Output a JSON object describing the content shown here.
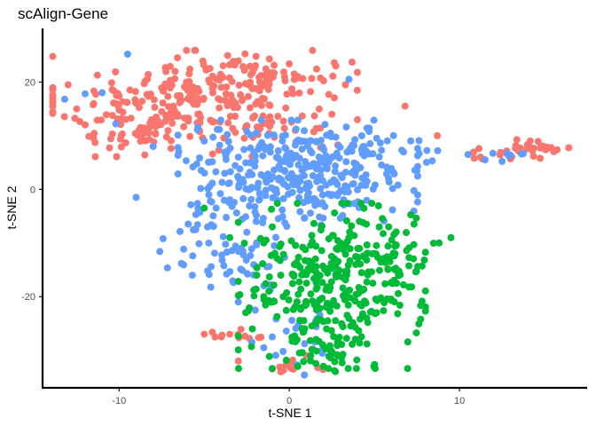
{
  "chart_data": {
    "type": "scatter",
    "title": "scAlign-Gene",
    "xlabel": "t-SNE 1",
    "ylabel": "t-SNE 2",
    "xlim": [
      -14.5,
      17.5
    ],
    "ylim": [
      -37,
      30
    ],
    "xticks": [
      -10,
      0,
      10
    ],
    "yticks": [
      -20,
      0,
      20
    ],
    "grid": false,
    "legend": "none",
    "series": [
      {
        "color": "#F8766D",
        "clusters": [
          {
            "center": [
              -5.5,
              16
            ],
            "spread": [
              4.0,
              4.5
            ],
            "n": 260
          },
          {
            "center": [
              -1.5,
              21
            ],
            "spread": [
              2.5,
              2.5
            ],
            "n": 60
          },
          {
            "center": [
              -9,
              11
            ],
            "spread": [
              1.5,
              2.0
            ],
            "n": 25
          },
          {
            "center": [
              14,
              7.5
            ],
            "spread": [
              1.3,
              0.8
            ],
            "n": 30
          },
          {
            "center": [
              12,
              6.5
            ],
            "spread": [
              0.8,
              0.5
            ],
            "n": 8
          },
          {
            "center": [
              -3,
              -27
            ],
            "spread": [
              1.3,
              0.8
            ],
            "n": 10
          },
          {
            "center": [
              1,
              -33
            ],
            "spread": [
              1.0,
              0.6
            ],
            "n": 10
          }
        ],
        "points": [
          [
            -13,
            19.5
          ],
          [
            -12.5,
            15
          ],
          [
            -12,
            12
          ],
          [
            -11.5,
            9.5
          ],
          [
            6.8,
            15.5
          ],
          [
            8.7,
            10
          ],
          [
            4,
            13
          ],
          [
            2.5,
            14
          ],
          [
            -4,
            19
          ],
          [
            1,
            -31
          ],
          [
            -3,
            -32
          ],
          [
            -0.5,
            -34
          ],
          [
            -1,
            -33.5
          ],
          [
            -5,
            -27
          ],
          [
            -4,
            -27.5
          ],
          [
            -3.5,
            -27
          ]
        ]
      },
      {
        "color": "#619CFF",
        "clusters": [
          {
            "center": [
              0.5,
              3
            ],
            "spread": [
              3.2,
              4.5
            ],
            "n": 330
          },
          {
            "center": [
              -3.5,
              -10
            ],
            "spread": [
              2.0,
              4.5
            ],
            "n": 70
          },
          {
            "center": [
              5,
              7
            ],
            "spread": [
              2.0,
              2.0
            ],
            "n": 40
          },
          {
            "center": [
              1,
              -28
            ],
            "spread": [
              1.2,
              3.0
            ],
            "n": 18
          },
          {
            "center": [
              13,
              6.5
            ],
            "spread": [
              0.8,
              0.6
            ],
            "n": 6
          }
        ],
        "points": [
          [
            -13.2,
            16.8
          ],
          [
            -12,
            17.8
          ],
          [
            -9,
            -1.5
          ],
          [
            -4.8,
            -15.2
          ],
          [
            -2.2,
            -28.5
          ],
          [
            -1.5,
            -29.5
          ],
          [
            -1,
            -27.5
          ],
          [
            -3,
            6
          ],
          [
            -5,
            9
          ],
          [
            -6.5,
            7
          ],
          [
            -8,
            8
          ],
          [
            -11,
            18
          ],
          [
            -9.5,
            25.2
          ],
          [
            -10.2,
            12.2
          ],
          [
            3.5,
            20.5
          ],
          [
            -3,
            -21
          ],
          [
            -2,
            -22.5
          ],
          [
            -4.3,
            -3.5
          ],
          [
            6,
            3.5
          ],
          [
            7.5,
            3.5
          ],
          [
            11.5,
            5.5
          ],
          [
            12.5,
            5.2
          ],
          [
            10.5,
            6.5
          ],
          [
            -1.5,
            -18
          ],
          [
            -5.5,
            -7.5
          ],
          [
            -2.5,
            -8
          ]
        ]
      },
      {
        "color": "#00BA38",
        "clusters": [
          {
            "center": [
              2.5,
              -18
            ],
            "spread": [
              2.5,
              7.0
            ],
            "n": 300
          },
          {
            "center": [
              6,
              -12
            ],
            "spread": [
              1.3,
              2.5
            ],
            "n": 45
          },
          {
            "center": [
              2.5,
              -30
            ],
            "spread": [
              1.2,
              2.5
            ],
            "n": 35
          }
        ],
        "points": [
          [
            -5,
            -3.5
          ],
          [
            -1,
            -7
          ],
          [
            -3.5,
            -9
          ],
          [
            -1.5,
            -10
          ],
          [
            9.5,
            -9
          ],
          [
            8.8,
            -10
          ],
          [
            0.3,
            -14
          ],
          [
            -0.5,
            -16
          ],
          [
            -1.2,
            -19
          ],
          [
            -1,
            -21
          ],
          [
            -1.5,
            -20
          ],
          [
            2,
            -33
          ],
          [
            0.5,
            -33
          ]
        ]
      }
    ]
  }
}
